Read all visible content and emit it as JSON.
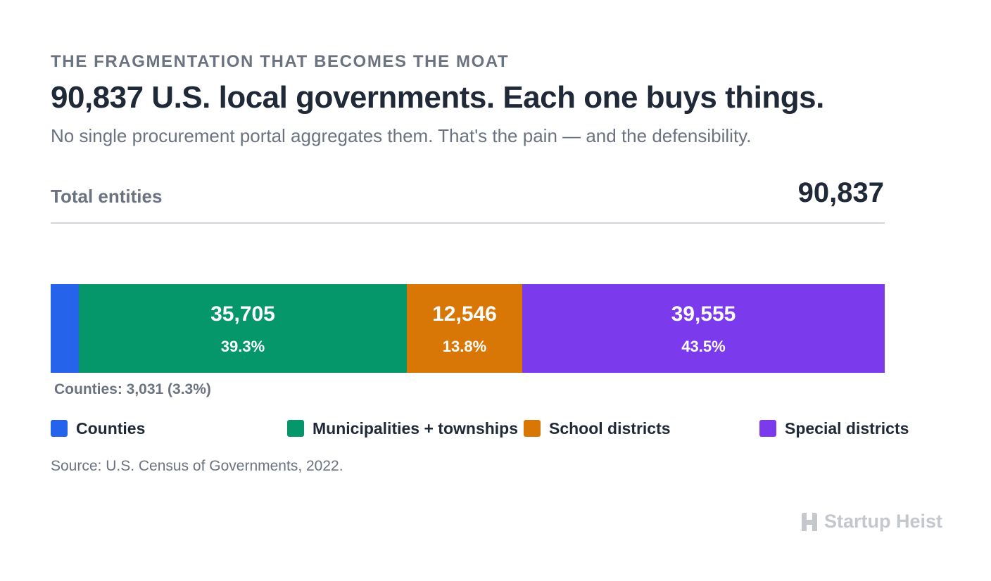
{
  "header": {
    "eyebrow": "THE FRAGMENTATION THAT BECOMES THE MOAT",
    "title": "90,837 U.S. local governments. Each one buys things.",
    "subtitle": "No single procurement portal aggregates them. That's the pain — and the defensibility."
  },
  "total": {
    "label": "Total entities",
    "value": "90,837"
  },
  "chart_data": {
    "type": "bar",
    "orientation": "horizontal-stacked-100",
    "total": 90837,
    "segments": [
      {
        "name": "Counties",
        "value": 3031,
        "value_label": "",
        "percent": 3.3,
        "percent_label": "",
        "color": "#2563eb"
      },
      {
        "name": "Municipalities + townships",
        "value": 35705,
        "value_label": "35,705",
        "percent": 39.3,
        "percent_label": "39.3%",
        "color": "#059669"
      },
      {
        "name": "School districts",
        "value": 12546,
        "value_label": "12,546",
        "percent": 13.8,
        "percent_label": "13.8%",
        "color": "#d97706"
      },
      {
        "name": "Special districts",
        "value": 39555,
        "value_label": "39,555",
        "percent": 43.5,
        "percent_label": "43.5%",
        "color": "#7c3aed"
      }
    ],
    "annotation": "Counties: 3,031 (3.3%)",
    "legend_position": "bottom"
  },
  "source": "Source: U.S. Census of Governments, 2022.",
  "brand": {
    "name": "Startup Heist",
    "icon": "building-logo-icon"
  }
}
